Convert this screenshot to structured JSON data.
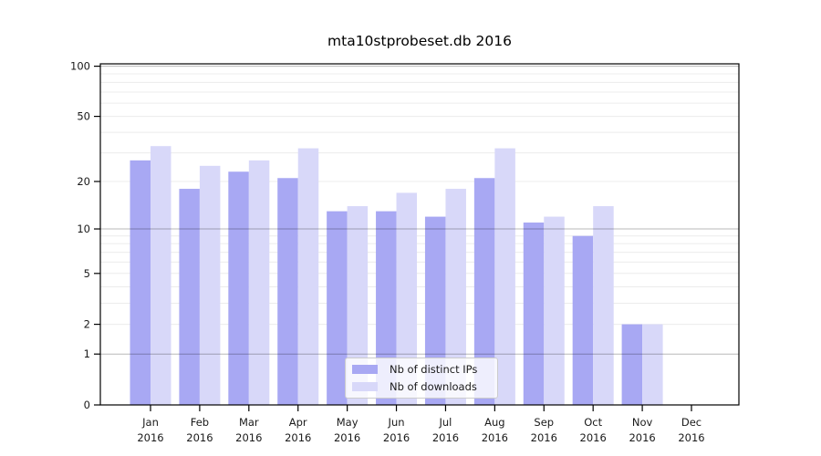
{
  "title": "mta10stprobeset.db 2016",
  "chart_data": {
    "type": "bar",
    "title": "mta10stprobeset.db 2016",
    "categories": [
      "Jan",
      "Feb",
      "Mar",
      "Apr",
      "May",
      "Jun",
      "Jul",
      "Aug",
      "Sep",
      "Oct",
      "Nov",
      "Dec"
    ],
    "x_sublabel": "2016",
    "series": [
      {
        "name": "Nb of distinct IPs",
        "color": "#a8a8f3",
        "values": [
          27,
          18,
          23,
          21,
          13,
          13,
          12,
          21,
          11,
          9,
          2,
          0
        ]
      },
      {
        "name": "Nb of downloads",
        "color": "#d8d8f9",
        "values": [
          33,
          25,
          27,
          32,
          14,
          17,
          18,
          32,
          12,
          14,
          2,
          0
        ]
      }
    ],
    "yscale": "log1p",
    "ylim": [
      0,
      103
    ],
    "y_ticks": [
      0,
      1,
      2,
      5,
      10,
      20,
      50,
      100
    ],
    "y_major_gridlines": [
      1,
      10,
      100
    ],
    "y_minor_gridlines": [
      2,
      3,
      4,
      5,
      6,
      7,
      8,
      9,
      20,
      30,
      40,
      50,
      60,
      70,
      80,
      90
    ],
    "grid": true,
    "legend_position": "lower-center-inside"
  }
}
